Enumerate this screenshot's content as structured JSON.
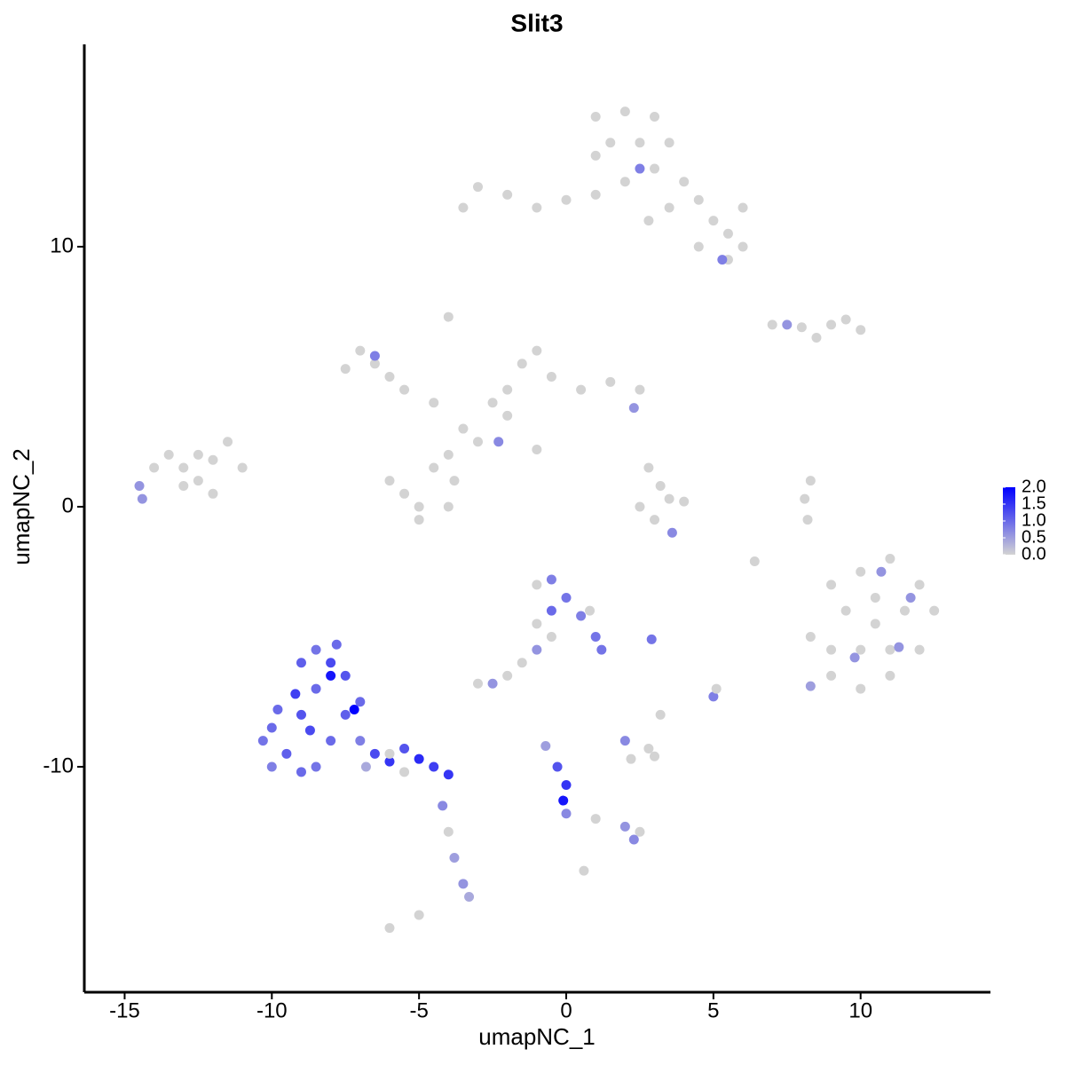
{
  "chart_data": {
    "type": "scatter",
    "title": "Slit3",
    "x_label": "umapNC_1",
    "y_label": "umapNC_2",
    "xlim": [
      -16.37,
      14.41
    ],
    "ylim": [
      -18.67,
      17.78
    ],
    "xticks": [
      -15,
      -10,
      -5,
      0,
      5,
      10
    ],
    "yticks": [
      -10,
      0,
      10
    ],
    "color_low": "#d3d3d3",
    "color_high": "#0000ff",
    "colorbar_lim": [
      0,
      2
    ],
    "colorbar_ticks": [
      {
        "value": 0,
        "label": "0.0"
      },
      {
        "value": 0.5,
        "label": "0.5"
      },
      {
        "value": 1,
        "label": "1.0"
      },
      {
        "value": 1.5,
        "label": "1.5"
      },
      {
        "value": 2,
        "label": "2.0"
      }
    ],
    "x": [
      1,
      2,
      3,
      1.5,
      2.5,
      3.5,
      1,
      3,
      4,
      4.5,
      5,
      5.5,
      6,
      5.5,
      4.5,
      3.5,
      2,
      1,
      0,
      -1,
      -2,
      -3,
      -3.5,
      2.5,
      5.3,
      6,
      2.8,
      -7,
      -6.5,
      -7.5,
      -6,
      -5.5,
      -4.5,
      -3.5,
      -3,
      -4,
      -4.5,
      -5.5,
      -5,
      -4,
      -3.8,
      -6,
      -5,
      -2.5,
      -2,
      -1.5,
      -1,
      -0.5,
      0.5,
      1.5,
      2.5,
      -4,
      -2,
      -1,
      -6.5,
      -2.3,
      2.3,
      -14,
      -13.5,
      -13,
      -12.5,
      -12,
      -13,
      -12,
      -11,
      -11.5,
      -14.5,
      -14.4,
      -12.5,
      2.8,
      3.2,
      3.5,
      2.5,
      3,
      4,
      3.6,
      8.3,
      8.1,
      8.2,
      7,
      8,
      9,
      9.5,
      10,
      7.5,
      8.5,
      9,
      10,
      11,
      12,
      12.5,
      12,
      11,
      10,
      9,
      8.3,
      9.5,
      10.5,
      11.5,
      10,
      11,
      9,
      10.5,
      11.7,
      10.7,
      11.3,
      9.8,
      8.3,
      -10,
      -9.5,
      -9,
      -8.5,
      -9,
      -8.5,
      -8,
      -7.5,
      -7.5,
      -8,
      -8.5,
      -9,
      -10,
      -10.3,
      -7,
      -7,
      -6.5,
      -6,
      -5.5,
      -5,
      -4.5,
      -4,
      -8,
      -7.2,
      -9.2,
      -9.8,
      -8.7,
      -7.8,
      -6.8,
      -5.5,
      -6,
      -4.2,
      -4,
      -3.8,
      -3.5,
      -3.3,
      -5,
      -6,
      -1,
      -0.5,
      0,
      -0.5,
      0.5,
      1,
      0.8,
      -1,
      -0.5,
      1.2,
      -1,
      -1.5,
      -2,
      -2.5,
      -3,
      2.9,
      -0.7,
      -0.3,
      0,
      -0.1,
      0,
      1,
      2,
      2.5,
      2.3,
      0.6,
      2,
      2.8,
      2.2,
      3,
      5,
      5.1,
      3.2,
      6.4
    ],
    "y": [
      15,
      15.2,
      15,
      14,
      14,
      14,
      13.5,
      13,
      12.5,
      11.8,
      11,
      10.5,
      10,
      9.5,
      10,
      11.5,
      12.5,
      12,
      11.8,
      11.5,
      12,
      12.3,
      11.5,
      13,
      9.5,
      11.5,
      11,
      6,
      5.5,
      5.3,
      5,
      4.5,
      4,
      3,
      2.5,
      2,
      1.5,
      0.5,
      0,
      0,
      1,
      1,
      -0.5,
      4,
      4.5,
      5.5,
      6,
      5,
      4.5,
      4.8,
      4.5,
      7.3,
      3.5,
      2.2,
      5.8,
      2.5,
      3.8,
      1.5,
      2,
      1.5,
      2,
      1.8,
      0.8,
      0.5,
      1.5,
      2.5,
      0.8,
      0.3,
      1,
      1.5,
      0.8,
      0.3,
      0,
      -0.5,
      0.2,
      -1,
      1,
      0.3,
      -0.5,
      7,
      6.9,
      7,
      7.2,
      6.8,
      7,
      6.5,
      -3,
      -2.5,
      -2,
      -3,
      -4,
      -5.5,
      -6.5,
      -7,
      -6.5,
      -5,
      -4,
      -4.5,
      -4,
      -5.5,
      -5.5,
      -5.5,
      -3.5,
      -3.5,
      -2.5,
      -5.4,
      -5.8,
      -6.9,
      -8.5,
      -9.5,
      -8,
      -7,
      -6,
      -5.5,
      -6,
      -6.5,
      -8,
      -9,
      -10,
      -10.2,
      -10,
      -9,
      -7.5,
      -9,
      -9.5,
      -9.8,
      -9.3,
      -9.7,
      -10,
      -10.3,
      -6.5,
      -7.8,
      -7.2,
      -7.8,
      -8.6,
      -5.3,
      -10,
      -10.2,
      -9.5,
      -11.5,
      -12.5,
      -13.5,
      -14.5,
      -15,
      -15.7,
      -16.2,
      -3,
      -2.8,
      -3.5,
      -4,
      -4.2,
      -5,
      -4,
      -4.5,
      -5,
      -5.5,
      -5.5,
      -6,
      -6.5,
      -6.8,
      -6.8,
      -5.1,
      -9.2,
      -10,
      -10.7,
      -11.3,
      -11.8,
      -12,
      -12.3,
      -12.5,
      -12.8,
      -14,
      -9,
      -9.3,
      -9.7,
      -9.6,
      -7.3,
      -7,
      -8,
      -2.1
    ],
    "values": [
      0,
      0,
      0,
      0,
      0,
      0,
      0,
      0,
      0,
      0,
      0,
      0,
      0,
      0,
      0,
      0,
      0,
      0,
      0,
      0,
      0,
      0,
      0,
      0.8,
      0.8,
      0,
      0,
      0,
      0,
      0,
      0,
      0,
      0,
      0,
      0,
      0,
      0,
      0,
      0,
      0,
      0,
      0,
      0,
      0,
      0,
      0,
      0,
      0,
      0,
      0,
      0,
      0,
      0,
      0,
      0.8,
      0.7,
      0.6,
      0,
      0,
      0,
      0,
      0,
      0,
      0,
      0,
      0,
      0.6,
      0.6,
      0,
      0,
      0,
      0,
      0,
      0,
      0,
      0.7,
      0,
      0,
      0,
      0,
      0,
      0,
      0,
      0,
      0.6,
      0,
      0,
      0,
      0,
      0,
      0,
      0,
      0,
      0,
      0,
      0,
      0,
      0,
      0,
      0,
      0,
      0,
      0,
      0.6,
      0.6,
      0.6,
      0.6,
      0.5,
      1,
      1.1,
      1.2,
      1,
      1.1,
      0.9,
      1.3,
      1.2,
      1.1,
      1,
      0.9,
      1,
      0.8,
      0.9,
      1,
      0.8,
      1.3,
      1.5,
      1.2,
      1.6,
      1.4,
      1.5,
      1.8,
      2,
      1.4,
      1,
      1.3,
      1,
      0.4,
      0,
      0,
      0.7,
      0,
      0.5,
      0.6,
      0.4,
      0,
      0,
      0,
      0.8,
      0.9,
      1,
      0.8,
      0.9,
      0,
      0,
      0,
      0.9,
      0.6,
      0,
      0,
      0.6,
      0,
      0.9,
      0.5,
      1.2,
      1.5,
      1.8,
      0.7,
      0,
      0.6,
      0,
      0.7,
      0,
      0.7,
      0,
      0,
      0,
      0.8,
      0,
      0,
      0
    ]
  }
}
